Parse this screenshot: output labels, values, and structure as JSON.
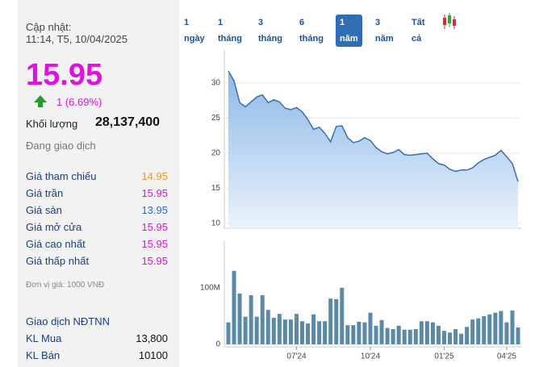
{
  "panel": {
    "updated_label": "Cập nhật:",
    "updated_time": "11:14, T5, 10/04/2025",
    "price": "15.95",
    "change": "1 (6.69%)",
    "volume_label": "Khối lượng",
    "volume": "28,137,400",
    "status": "Đang giao dịch",
    "rows": [
      [
        "Giá tham chiếu",
        "14.95"
      ],
      [
        "Giá trần",
        "15.95"
      ],
      [
        "Giá sàn",
        "13.95"
      ],
      [
        "Giá mở cửa",
        "15.95"
      ],
      [
        "Giá cao nhất",
        "15.95"
      ],
      [
        "Giá thấp nhất",
        "15.95"
      ]
    ],
    "unit_note": "Đơn vị giá: 1000 VNĐ",
    "foreign_title": "Giao dịch NĐTNN",
    "foreign_rows": [
      [
        "KL Mua",
        "13,800"
      ],
      [
        "KL Bán",
        "10100"
      ]
    ]
  },
  "tabs": [
    "1 ngày",
    "1 tháng",
    "3 tháng",
    "6 tháng",
    "1 năm",
    "3 năm",
    "Tất cả"
  ],
  "active_tab": 4,
  "chart_data": [
    {
      "type": "area",
      "color": "#3a6fa8",
      "ylim": [
        9.3,
        34
      ],
      "yticks": [
        10,
        15,
        20,
        25,
        30
      ],
      "grid": true,
      "values": [
        31.7,
        30.3,
        27.2,
        26.6,
        27.3,
        28,
        28.3,
        27.2,
        27.6,
        27.3,
        26.4,
        26.2,
        26.5,
        25.9,
        24.8,
        23.4,
        23.7,
        22.8,
        21.6,
        23.8,
        23.9,
        22.2,
        21.5,
        21.7,
        22.2,
        21.8,
        20.8,
        20.2,
        19.9,
        20.1,
        20.5,
        19.8,
        19.7,
        19.8,
        19.9,
        20,
        19.2,
        18.5,
        18.3,
        17.7,
        17.4,
        17.6,
        17.6,
        17.9,
        18.6,
        19.1,
        19.4,
        19.7,
        20.4,
        19.5,
        18.5,
        15.95
      ]
    },
    {
      "type": "bar",
      "color": "#5b8aa6",
      "ylim": [
        0,
        181000000
      ],
      "yticks": [
        0,
        {
          "value": 100000000,
          "label": "100M"
        }
      ],
      "categories": [
        null,
        null,
        null,
        null,
        null,
        null,
        null,
        null,
        null,
        null,
        null,
        null,
        "07'24",
        null,
        null,
        null,
        null,
        null,
        null,
        null,
        null,
        null,
        null,
        null,
        null,
        "10'24",
        null,
        null,
        null,
        null,
        null,
        null,
        null,
        null,
        null,
        null,
        null,
        null,
        "01'25",
        null,
        null,
        null,
        null,
        null,
        null,
        null,
        null,
        null,
        null,
        "04'25",
        null,
        null
      ],
      "values": [
        39000000,
        130000000,
        90000000,
        49000000,
        87000000,
        49000000,
        87000000,
        61000000,
        47000000,
        54000000,
        44000000,
        44000000,
        54000000,
        41000000,
        37000000,
        53000000,
        41000000,
        41000000,
        81000000,
        80000000,
        100000000,
        34000000,
        34000000,
        40000000,
        39000000,
        56000000,
        33000000,
        43000000,
        29000000,
        27000000,
        33000000,
        26000000,
        26000000,
        27000000,
        41000000,
        41000000,
        39000000,
        33000000,
        24000000,
        21000000,
        27000000,
        19000000,
        31000000,
        44000000,
        46000000,
        50000000,
        53000000,
        56000000,
        59000000,
        39000000,
        60000000,
        30000000
      ]
    }
  ]
}
